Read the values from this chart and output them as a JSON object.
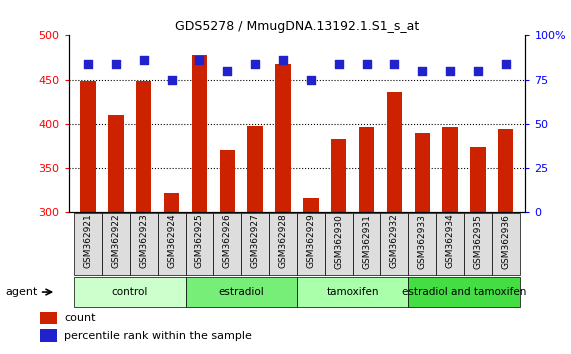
{
  "title": "GDS5278 / MmugDNA.13192.1.S1_s_at",
  "categories": [
    "GSM362921",
    "GSM362922",
    "GSM362923",
    "GSM362924",
    "GSM362925",
    "GSM362926",
    "GSM362927",
    "GSM362928",
    "GSM362929",
    "GSM362930",
    "GSM362931",
    "GSM362932",
    "GSM362933",
    "GSM362934",
    "GSM362935",
    "GSM362936"
  ],
  "counts": [
    448,
    410,
    449,
    322,
    478,
    370,
    398,
    468,
    316,
    383,
    397,
    436,
    390,
    396,
    374,
    394
  ],
  "percentile_ranks": [
    84,
    84,
    86,
    75,
    86,
    80,
    84,
    86,
    75,
    84,
    84,
    84,
    80,
    80,
    80,
    84
  ],
  "bar_color": "#cc2200",
  "dot_color": "#2222cc",
  "ylim_left": [
    300,
    500
  ],
  "ylim_right": [
    0,
    100
  ],
  "yticks_left": [
    300,
    350,
    400,
    450,
    500
  ],
  "yticks_right": [
    0,
    25,
    50,
    75,
    100
  ],
  "groups": [
    {
      "label": "control",
      "start": 0,
      "end": 4,
      "color": "#ccffcc"
    },
    {
      "label": "estradiol",
      "start": 4,
      "end": 8,
      "color": "#77ee77"
    },
    {
      "label": "tamoxifen",
      "start": 8,
      "end": 12,
      "color": "#aaffaa"
    },
    {
      "label": "estradiol and tamoxifen",
      "start": 12,
      "end": 16,
      "color": "#44dd44"
    }
  ],
  "agent_label": "agent",
  "legend_count_label": "count",
  "legend_percentile_label": "percentile rank within the sample",
  "bg_color": "#ffffff",
  "bar_width": 0.55,
  "dot_size": 32,
  "ticklabel_bg": "#dddddd"
}
